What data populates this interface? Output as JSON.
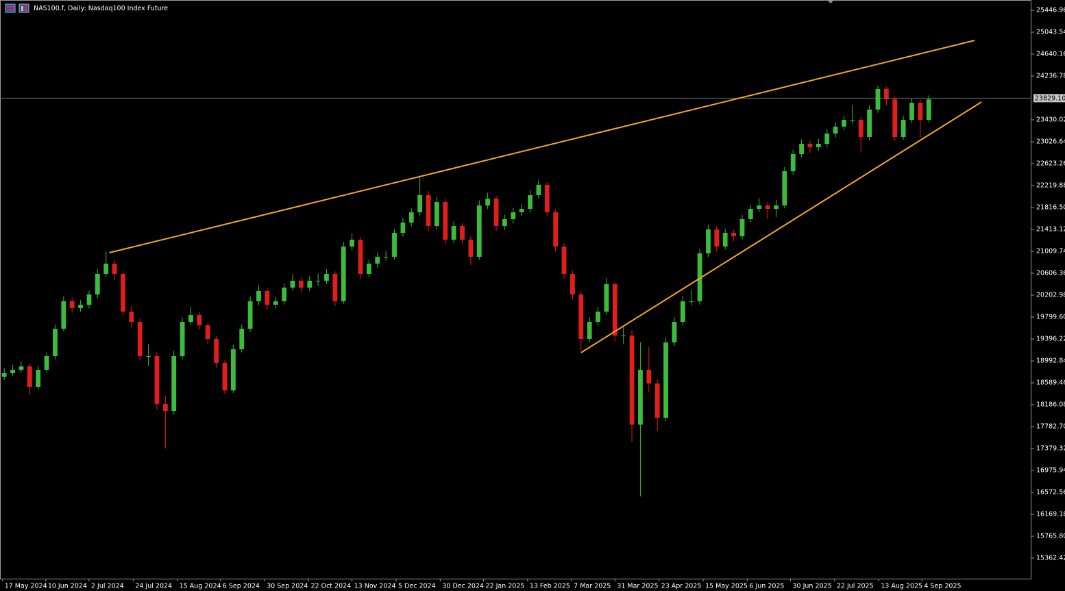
{
  "chart_data": {
    "type": "candlestick",
    "title": "NAS100.f, Daily:  Nasdaq100 Index Future",
    "up_color": "#3dbb3d",
    "down_color": "#e01e1e",
    "trendline_color": "#f5a623",
    "price_line_color": "#5a6a7a",
    "open": [
      18700,
      18766,
      18829,
      18892,
      18514,
      18829,
      19081,
      19585,
      20091,
      19963,
      20026,
      20216,
      20594,
      20783,
      20594,
      19900,
      19711,
      19081,
      19081,
      18199,
      18072,
      19081,
      19711,
      19837,
      19648,
      19396,
      18955,
      18451,
      19207,
      19585,
      20091,
      20279,
      20026,
      20091,
      20342,
      20468,
      20342,
      20468,
      20468,
      20594,
      20091,
      21098,
      21224,
      20594,
      20783,
      20909,
      20909,
      21350,
      21539,
      21728,
      22043,
      21476,
      21917,
      21224,
      21476,
      21224,
      20909,
      21854,
      21980,
      21476,
      21602,
      21728,
      21791,
      22043,
      22233,
      21728,
      21098,
      20594,
      20216,
      19396,
      19711,
      19900,
      20405,
      19459,
      19459,
      17820,
      18829,
      18577,
      17946,
      19333,
      19711,
      20091,
      20091,
      20972,
      21413,
      21098,
      21350,
      21287,
      21602,
      21791,
      21854,
      21791,
      21854,
      22484,
      22800,
      22989,
      22926,
      22989,
      23178,
      23305,
      23430,
      23430,
      23115,
      23619,
      23998,
      23808,
      23115,
      23430,
      23745,
      23430
    ],
    "high": [
      18860,
      18920,
      18980,
      18940,
      18900,
      19150,
      19660,
      20180,
      20160,
      20110,
      20290,
      20680,
      21010,
      20860,
      20650,
      20000,
      19780,
      19300,
      19150,
      18350,
      19180,
      19790,
      19990,
      19900,
      19700,
      19450,
      19010,
      19290,
      19660,
      20180,
      20380,
      20330,
      20170,
      20420,
      20590,
      20530,
      20560,
      20600,
      20680,
      20640,
      21180,
      21330,
      21270,
      20860,
      20990,
      21020,
      21420,
      21630,
      21800,
      22380,
      22120,
      22020,
      21980,
      21560,
      21530,
      21290,
      21950,
      22090,
      22030,
      21680,
      21810,
      21880,
      22130,
      22330,
      22280,
      21790,
      21160,
      20660,
      20280,
      19800,
      19990,
      20520,
      20460,
      19640,
      19560,
      19340,
      19250,
      18650,
      19420,
      19800,
      20190,
      20300,
      21050,
      21500,
      21480,
      21430,
      21410,
      21680,
      21870,
      21990,
      21920,
      21960,
      22560,
      22880,
      23070,
      23050,
      23080,
      23260,
      23390,
      23510,
      23700,
      23490,
      23700,
      24060,
      24040,
      23860,
      23500,
      23820,
      23800,
      23880
    ],
    "low": [
      18640,
      18720,
      18780,
      18380,
      18470,
      18780,
      19020,
      19540,
      19880,
      19900,
      19960,
      20150,
      20540,
      20480,
      19820,
      19600,
      19000,
      18900,
      18100,
      17380,
      18000,
      19020,
      19660,
      19560,
      19300,
      18860,
      18380,
      18400,
      19150,
      19530,
      20020,
      19920,
      19960,
      20030,
      20290,
      20250,
      20280,
      20370,
      20410,
      20000,
      20040,
      21030,
      20500,
      20530,
      20700,
      20840,
      20860,
      21280,
      21470,
      21670,
      21380,
      21410,
      21130,
      21160,
      21140,
      20760,
      20850,
      21790,
      21380,
      21410,
      21520,
      21660,
      21720,
      21980,
      21650,
      21000,
      20500,
      20120,
      19180,
      19330,
      19640,
      19840,
      19350,
      19300,
      17500,
      16500,
      18420,
      17700,
      17880,
      19270,
      19640,
      20010,
      20030,
      20900,
      21000,
      21040,
      21200,
      21230,
      21540,
      21730,
      21600,
      21640,
      21800,
      22420,
      22740,
      22820,
      22860,
      22920,
      23110,
      23240,
      23360,
      22830,
      23050,
      23560,
      23700,
      23040,
      23060,
      23370,
      23100,
      23380
    ],
    "close": [
      18766,
      18829,
      18892,
      18514,
      18829,
      19081,
      19585,
      20091,
      19963,
      20026,
      20216,
      20594,
      20783,
      20594,
      19900,
      19711,
      19081,
      19081,
      18199,
      18072,
      19081,
      19711,
      19837,
      19648,
      19396,
      18955,
      18451,
      19207,
      19585,
      20091,
      20279,
      20026,
      20091,
      20342,
      20468,
      20342,
      20468,
      20468,
      20594,
      20091,
      21098,
      21224,
      20594,
      20783,
      20909,
      20909,
      21350,
      21539,
      21728,
      22043,
      21476,
      21917,
      21224,
      21476,
      21224,
      20909,
      21854,
      21980,
      21476,
      21602,
      21728,
      21791,
      22043,
      22233,
      21728,
      21098,
      20594,
      20216,
      19396,
      19711,
      19900,
      20405,
      19459,
      19459,
      17820,
      18829,
      18577,
      17946,
      19333,
      19711,
      20091,
      20091,
      20972,
      21413,
      21098,
      21350,
      21287,
      21602,
      21791,
      21854,
      21791,
      21854,
      22484,
      22800,
      22989,
      22926,
      22989,
      23178,
      23305,
      23430,
      23430,
      23115,
      23619,
      23998,
      23808,
      23115,
      23430,
      23745,
      23430,
      23808
    ],
    "xlim": [
      -0.5,
      121.1
    ],
    "ylim": [
      14984,
      25636
    ],
    "xticks": [
      {
        "value": -0.2,
        "label": "17 May 2024"
      },
      {
        "value": 4.9,
        "label": "10 Jun 2024"
      },
      {
        "value": 10,
        "label": "2 Jul 2024"
      },
      {
        "value": 15.2,
        "label": "24 Jul 2024"
      },
      {
        "value": 20.4,
        "label": "15 Aug 2024"
      },
      {
        "value": 25.5,
        "label": "6 Sep 2024"
      },
      {
        "value": 30.7,
        "label": "30 Sep 2024"
      },
      {
        "value": 35.9,
        "label": "22 Oct 2024"
      },
      {
        "value": 41,
        "label": "13 Nov 2024"
      },
      {
        "value": 46.2,
        "label": "5 Dec 2024"
      },
      {
        "value": 51.4,
        "label": "30 Dec 2024"
      },
      {
        "value": 56.5,
        "label": "22 Jan 2025"
      },
      {
        "value": 61.7,
        "label": "13 Feb 2025"
      },
      {
        "value": 66.9,
        "label": "7 Mar 2025"
      },
      {
        "value": 72,
        "label": "31 Mar 2025"
      },
      {
        "value": 77.2,
        "label": "23 Apr 2025"
      },
      {
        "value": 82.4,
        "label": "15 May 2025"
      },
      {
        "value": 87.6,
        "label": "6 Jun 2025"
      },
      {
        "value": 92.7,
        "label": "30 Jun 2025"
      },
      {
        "value": 97.9,
        "label": "22 Jul 2025"
      },
      {
        "value": 103.1,
        "label": "13 Aug 2025"
      },
      {
        "value": 108.2,
        "label": "4 Sep 2025"
      }
    ],
    "yticks": [
      25446.96,
      25043.54,
      24640.16,
      24236.78,
      23430.02,
      23026.64,
      22623.26,
      22219.88,
      {
        "value": 21816.5,
        "label": "21816.50"
      },
      21413.12,
      21009.74,
      20606.36,
      20202.98,
      {
        "value": 19799.6,
        "label": "19799.60"
      },
      19396.22,
      18992.84,
      18589.46,
      18186.08,
      {
        "value": 17782.7,
        "label": "17782.70"
      },
      17379.32,
      16975.94,
      16572.56,
      16169.18,
      {
        "value": 15765.8,
        "label": "15765.80"
      },
      15362.42
    ],
    "price_line": {
      "value": 23829.1,
      "label": "23829.10"
    },
    "trendlines": [
      {
        "x": [
          12.4,
          114.4
        ],
        "y": [
          20984,
          24892
        ]
      },
      {
        "x": [
          68,
          115.2
        ],
        "y": [
          19144,
          23758
        ]
      }
    ]
  }
}
